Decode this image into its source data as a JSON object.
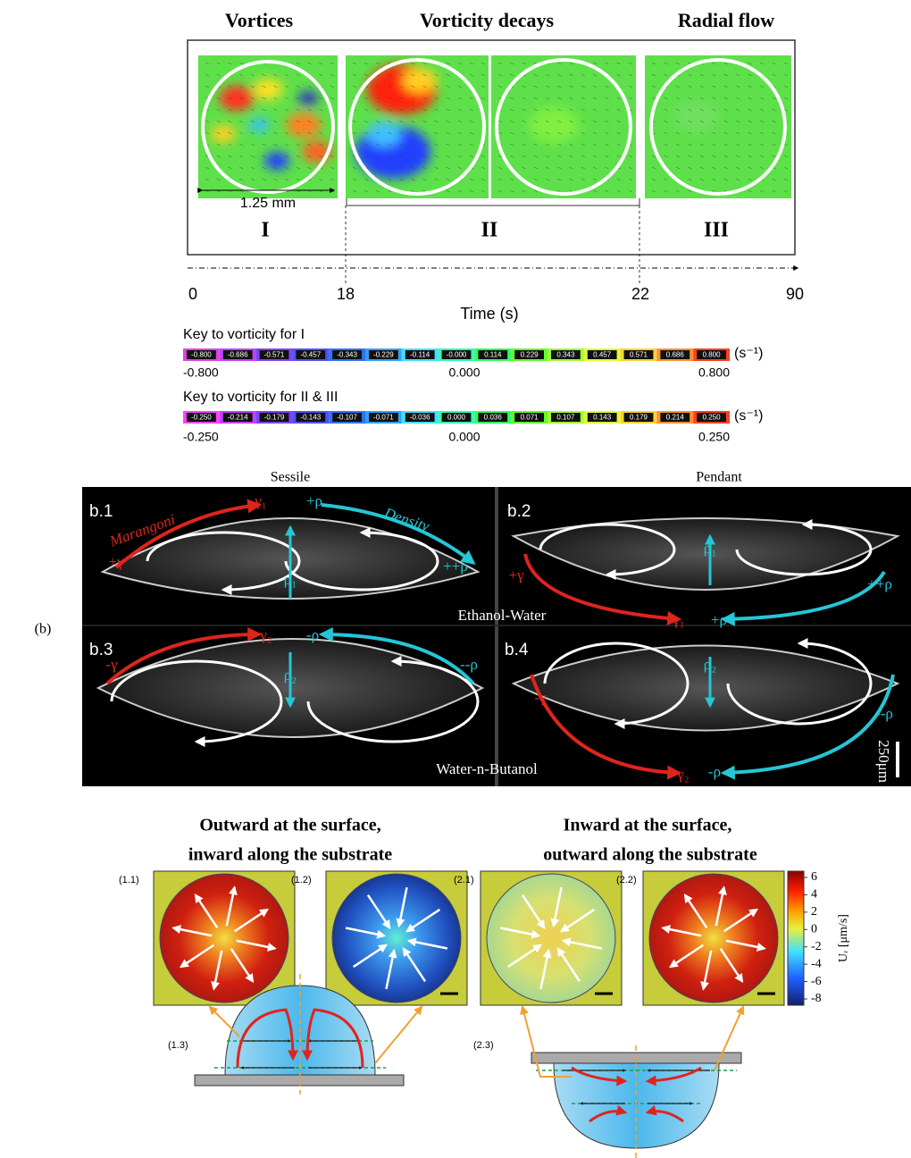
{
  "panel_a": {
    "titles": [
      "Vortices",
      "Vorticity decays",
      "Radial flow"
    ],
    "scale_label": "1.25 mm",
    "phases": [
      "I",
      "II",
      "III"
    ],
    "time_ticks": [
      0,
      18,
      22,
      90
    ],
    "time_label": "Time (s)",
    "keys": [
      {
        "title": "Key to vorticity for I",
        "segments": [
          "-0.800",
          "-0.686",
          "-0.571",
          "-0.457",
          "-0.343",
          "-0.229",
          "-0.114",
          "-0.000",
          "0.114",
          "0.229",
          "0.343",
          "0.457",
          "0.571",
          "0.686",
          "0.800"
        ],
        "end_labels": [
          "-0.800",
          "0.000",
          "0.800"
        ],
        "unit": "(s⁻¹)"
      },
      {
        "title": "Key to vorticity for II & III",
        "segments": [
          "-0.250",
          "-0.214",
          "-0.179",
          "-0.143",
          "-0.107",
          "-0.071",
          "-0.036",
          "0.000",
          "0.036",
          "0.071",
          "0.107",
          "0.143",
          "0.179",
          "0.214",
          "0.250"
        ],
        "end_labels": [
          "-0.250",
          "0.000",
          "0.250"
        ],
        "unit": "(s⁻¹)"
      }
    ]
  },
  "panel_b": {
    "label": "(b)",
    "columns": [
      "Sessile",
      "Pendant"
    ],
    "subpanels": [
      "b.1",
      "b.2",
      "b.3",
      "b.4"
    ],
    "annotations": [
      "Marangoni",
      "Density",
      "+γ",
      "γ₁",
      "+ρ",
      "++ρ",
      "ρ₁",
      "+γ",
      "++ρ",
      "ρ₁",
      "γ₁",
      "+ρ",
      "Ethanol-Water",
      "γ₂",
      "-ρ",
      "-γ",
      "--ρ",
      "ρ₂",
      "ρ₂",
      "-γ",
      "--ρ",
      "γ₂",
      "-ρ",
      "250μm",
      "Water-n-Butanol"
    ]
  },
  "panel_c": {
    "titles": [
      "Outward at the surface,",
      "inward along the substrate",
      "Inward at the surface,",
      "outward along the substrate"
    ],
    "image_labels": [
      "(1.1)",
      "(1.2)",
      "(2.1)",
      "(2.2)"
    ],
    "drop_labels": [
      "(1.3)",
      "(2.3)"
    ],
    "colorbar_ticks": [
      6,
      4,
      2,
      0,
      -2,
      -4,
      -6,
      -8
    ],
    "colorbar_label": "Uᵣ [μm/s]"
  }
}
